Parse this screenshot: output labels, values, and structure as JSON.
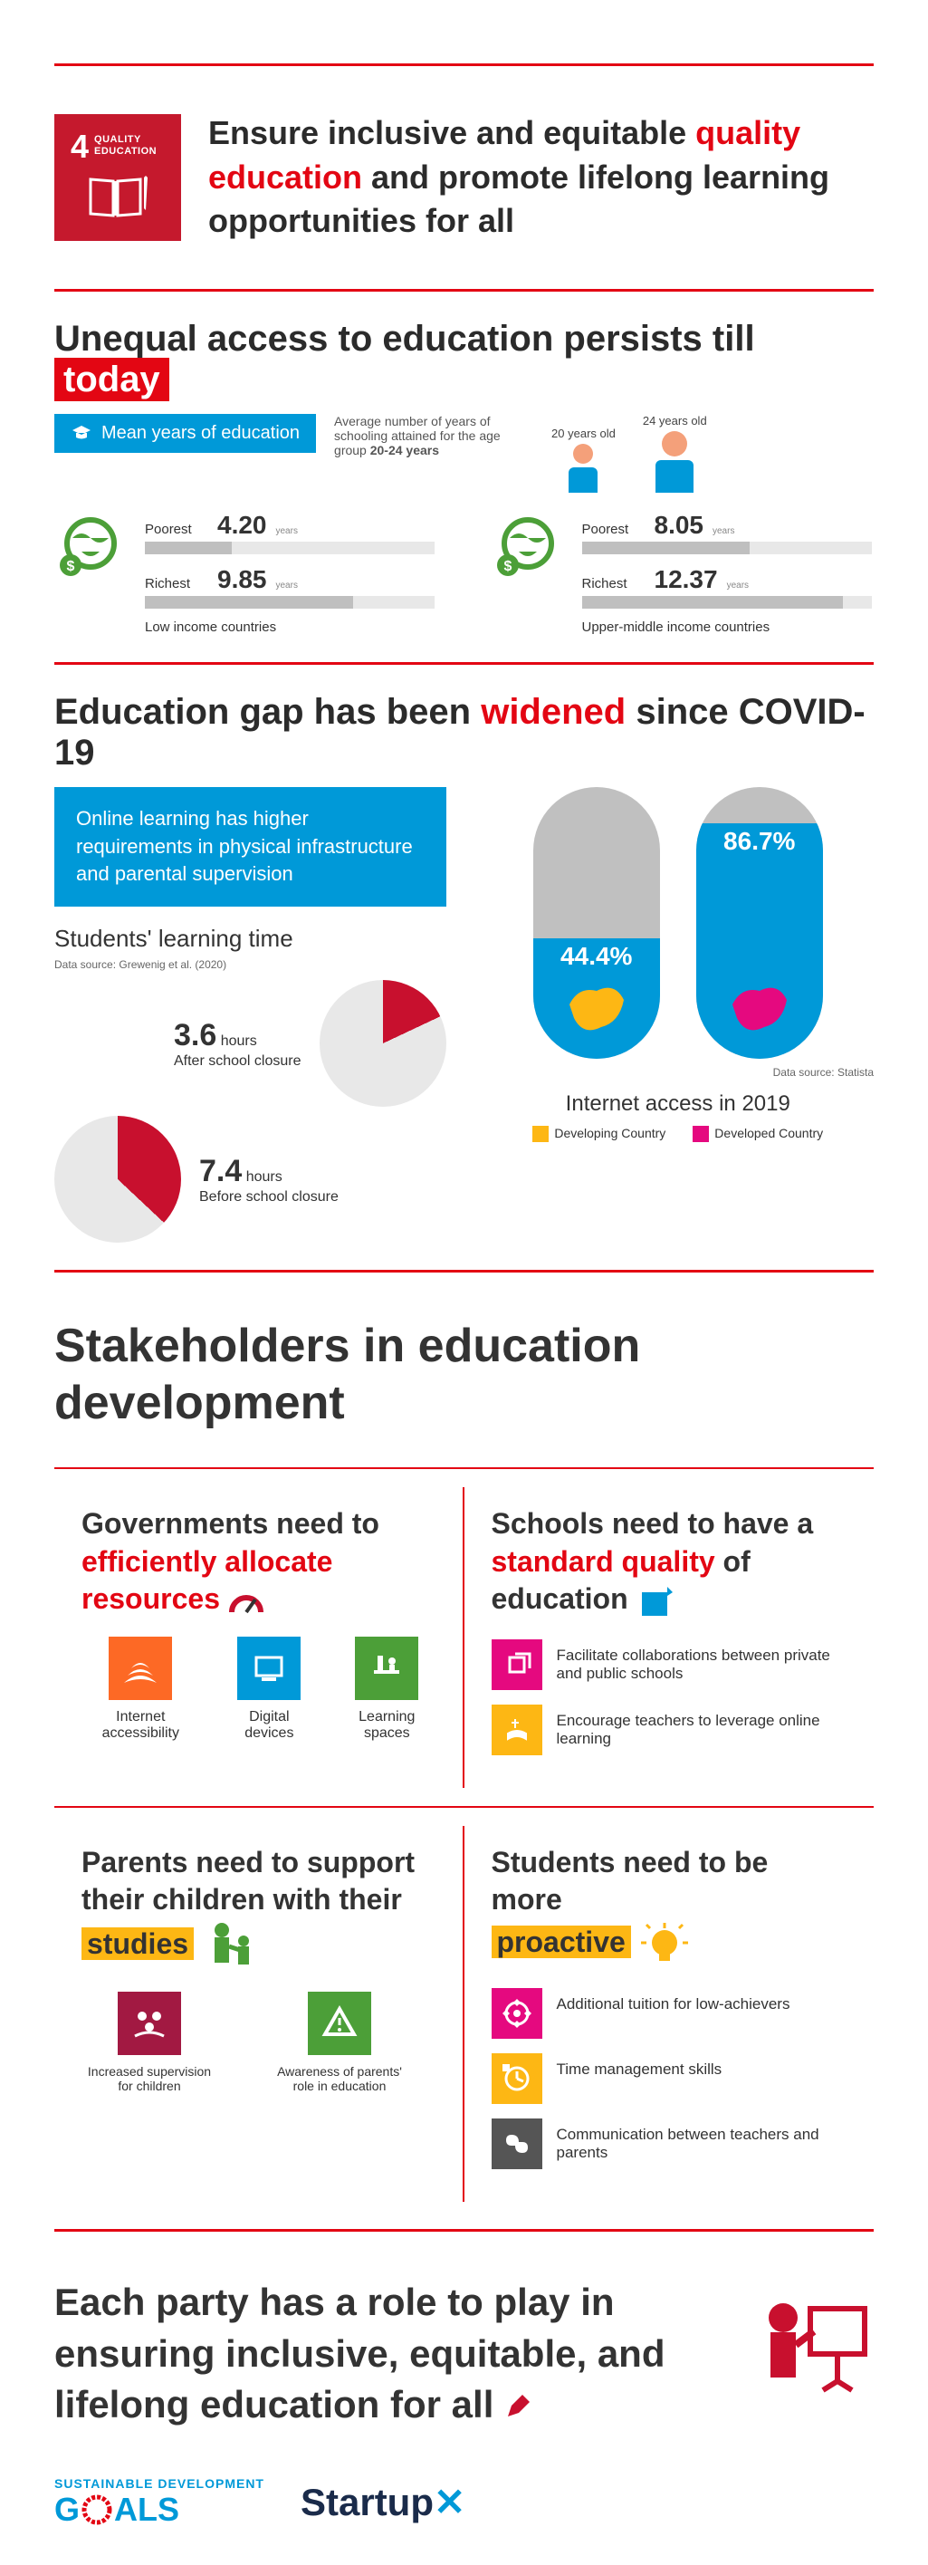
{
  "colors": {
    "red": "#e30613",
    "maroon": "#c5192d",
    "blue": "#0099d8",
    "yellow": "#fdb714",
    "magenta": "#e5097f",
    "green": "#4c9f38",
    "orange": "#fd6925",
    "darkred": "#a21942",
    "grey_bar": "#bfbfbf",
    "grey_track": "#e8e8e8",
    "capsule_grey": "#c0c0c0"
  },
  "sdg": {
    "number": "4",
    "label": "QUALITY EDUCATION"
  },
  "header": {
    "pre": "Ensure inclusive and equitable ",
    "hl": "quality education",
    "post": " and promote lifelong learning opportunities for all"
  },
  "section2": {
    "title_pre": "Unequal access to education persists till ",
    "title_hl": "today",
    "badge": "Mean years of education",
    "subtext_a": "Average number of years of schooling attained for the age group ",
    "subtext_b": "20-24 years",
    "ages": [
      "20 years old",
      "24 years old"
    ],
    "groups": [
      {
        "label": "Low income countries",
        "bars": [
          {
            "name": "Poorest",
            "value": "4.20",
            "pct": 30
          },
          {
            "name": "Richest",
            "value": "9.85",
            "pct": 72
          }
        ]
      },
      {
        "label": "Upper-middle income countries",
        "bars": [
          {
            "name": "Poorest",
            "value": "8.05",
            "pct": 58
          },
          {
            "name": "Richest",
            "value": "12.37",
            "pct": 90
          }
        ]
      }
    ],
    "years_unit": "years"
  },
  "section3": {
    "title_pre": "Education gap has been ",
    "title_hl": "widened",
    "title_post": " since COVID-19",
    "blue_box": "Online learning has higher requirements in physical infrastructure and parental supervision",
    "learning_title": "Students' learning time",
    "learning_source": "Data source: Grewenig et al. (2020)",
    "pies": [
      {
        "hours": "3.6",
        "unit": "hours",
        "caption": "After school closure",
        "pct": 18,
        "color": "#c8102e"
      },
      {
        "hours": "7.4",
        "unit": "hours",
        "caption": "Before school closure",
        "pct": 37,
        "color": "#c8102e"
      }
    ],
    "capsules": [
      {
        "pct_label": "44.4%",
        "fill_pct": 44.4,
        "shape_color": "#fdb714"
      },
      {
        "pct_label": "86.7%",
        "fill_pct": 86.7,
        "shape_color": "#e5097f"
      }
    ],
    "net_source": "Data source: Statista",
    "net_title": "Internet access in 2019",
    "legend": [
      {
        "color": "#fdb714",
        "label": "Developing Country"
      },
      {
        "color": "#e5097f",
        "label": "Developed Country"
      }
    ]
  },
  "stakeholders_title": "Stakeholders in education development",
  "gov": {
    "pre": "Governments need to ",
    "hl": "efficiently allocate resources",
    "items": [
      {
        "color": "#fd6925",
        "label": "Internet accessibility"
      },
      {
        "color": "#0099d8",
        "label": "Digital devices"
      },
      {
        "color": "#4c9f38",
        "label": "Learning spaces"
      }
    ]
  },
  "schools": {
    "pre": "Schools need to have a ",
    "hl": "standard quality",
    "post": " of education",
    "items": [
      {
        "color": "#e5097f",
        "text": "Facilitate collaborations between private and public schools"
      },
      {
        "color": "#fdb714",
        "text": "Encourage teachers to leverage online learning"
      }
    ]
  },
  "parents": {
    "pre": "Parents need to support their children with their ",
    "hl": "studies",
    "items": [
      {
        "color": "#a21942",
        "label": "Increased supervision for children"
      },
      {
        "color": "#4c9f38",
        "label": "Awareness of parents' role in education"
      }
    ]
  },
  "students": {
    "pre": "Students need to be more ",
    "hl": "proactive",
    "items": [
      {
        "color": "#e5097f",
        "text": "Additional tuition for low-achievers"
      },
      {
        "color": "#fdb714",
        "text": "Time management skills"
      },
      {
        "color": "#555555",
        "text": "Communication between teachers and parents"
      }
    ]
  },
  "footer": {
    "text": "Each party has a role to play in ensuring inclusive, equitable, and lifelong education for all",
    "sdg_small": "SUSTAINABLE DEVELOPMENT",
    "sdg_big": "G   ALS",
    "startup": "Startup"
  }
}
